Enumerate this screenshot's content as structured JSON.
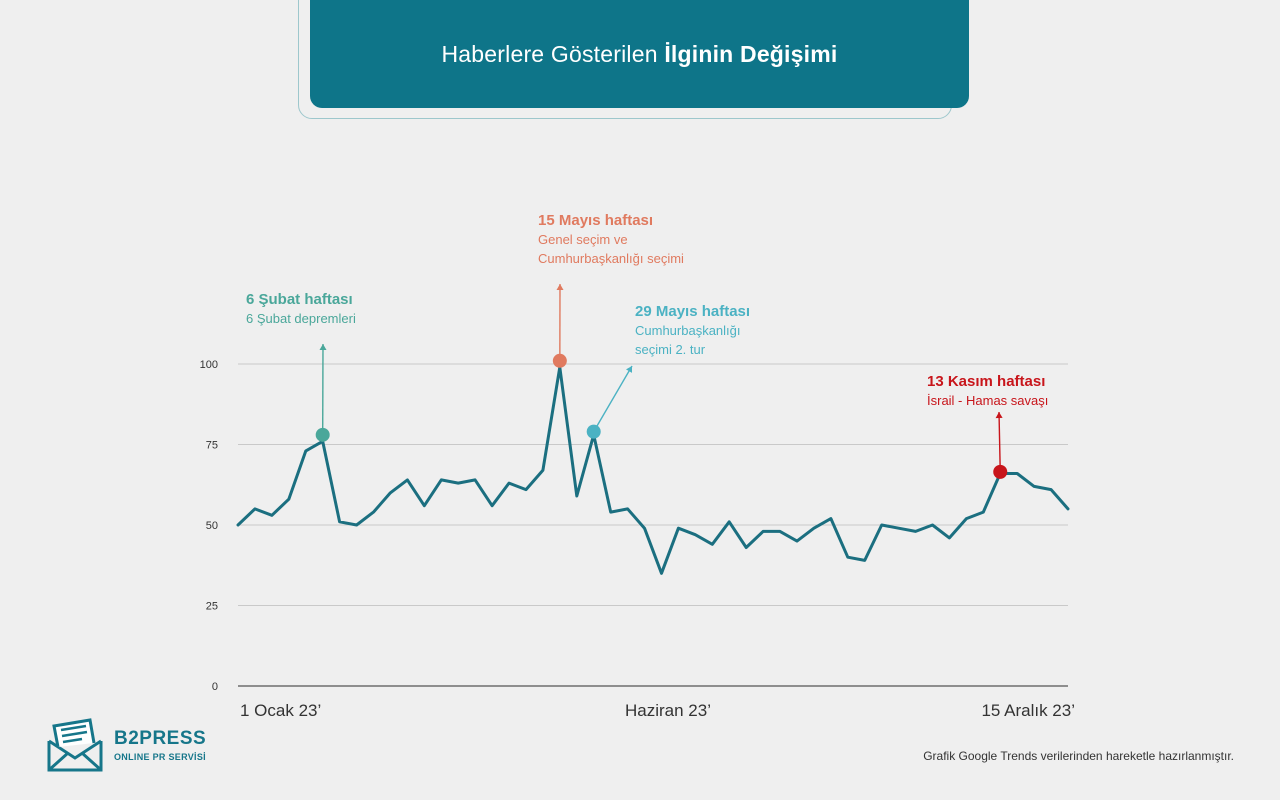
{
  "header": {
    "title_regular": "Haberlere Gösterilen ",
    "title_bold": "İlginin Değişimi"
  },
  "chart_data": {
    "type": "line",
    "title": "Haberlere Gösterilen İlginin Değişimi",
    "ylim": [
      0,
      100
    ],
    "y_ticks": [
      "0",
      "25",
      "50",
      "75",
      "100"
    ],
    "x_tick_labels": [
      "1 Ocak 23’",
      "Haziran 23’",
      "15 Aralık 23’"
    ],
    "grid": true,
    "line_color": "#1b6f80",
    "series": [
      {
        "values": [
          50,
          55,
          53,
          58,
          73,
          76,
          51,
          50,
          54,
          60,
          64,
          56,
          64,
          63,
          64,
          56,
          63,
          61,
          67,
          99,
          59,
          78,
          54,
          55,
          49,
          35,
          49,
          47,
          44,
          51,
          43,
          48,
          48,
          45,
          49,
          52,
          40,
          39,
          50,
          49,
          48,
          50,
          46,
          52,
          54,
          66,
          66,
          62,
          61,
          55
        ]
      }
    ],
    "annotations": [
      {
        "index": 5,
        "value": 78,
        "color": "#4aa79a",
        "title": "6 Şubat haftası",
        "lines": [
          "6 Şubat depremleri"
        ]
      },
      {
        "index": 19,
        "value": 101,
        "color": "#e07a5f",
        "title": "15 Mayıs haftası",
        "lines": [
          "Genel seçim ve",
          "Cumhurbaşkanlığı seçimi"
        ]
      },
      {
        "index": 21,
        "value": 79,
        "color": "#4bb2c3",
        "title": "29 Mayıs haftası",
        "lines": [
          "Cumhurbaşkanlığı",
          "seçimi 2. tur"
        ]
      },
      {
        "index": 45,
        "value": 66.5,
        "color": "#c8151b",
        "title": "13 Kasım haftası",
        "lines": [
          "İsrail - Hamas savaşı"
        ]
      }
    ]
  },
  "logo": {
    "name": "B2PRESS",
    "subtitle": "ONLINE PR SERVİSİ"
  },
  "source_note": "Grafik Google Trends verilerinden hareketle hazırlanmıştır."
}
